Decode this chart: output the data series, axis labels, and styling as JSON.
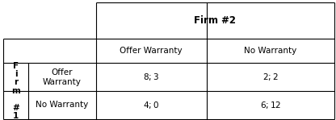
{
  "firm2_label": "Firm #2",
  "col_headers": [
    "Offer Warranty",
    "No Warranty"
  ],
  "row_headers": [
    "Offer\nWarranty",
    "No Warranty"
  ],
  "payoffs": [
    [
      "$8; $3",
      "$2;  $2"
    ],
    [
      "$4; $0",
      "$6; $12"
    ]
  ],
  "firm1_chars": "F\ni\nr\nm\n\n#\n1",
  "background": "#ffffff",
  "line_color": "#000000",
  "text_color": "#000000",
  "font_size": 7.5,
  "header_font_size": 8.5
}
